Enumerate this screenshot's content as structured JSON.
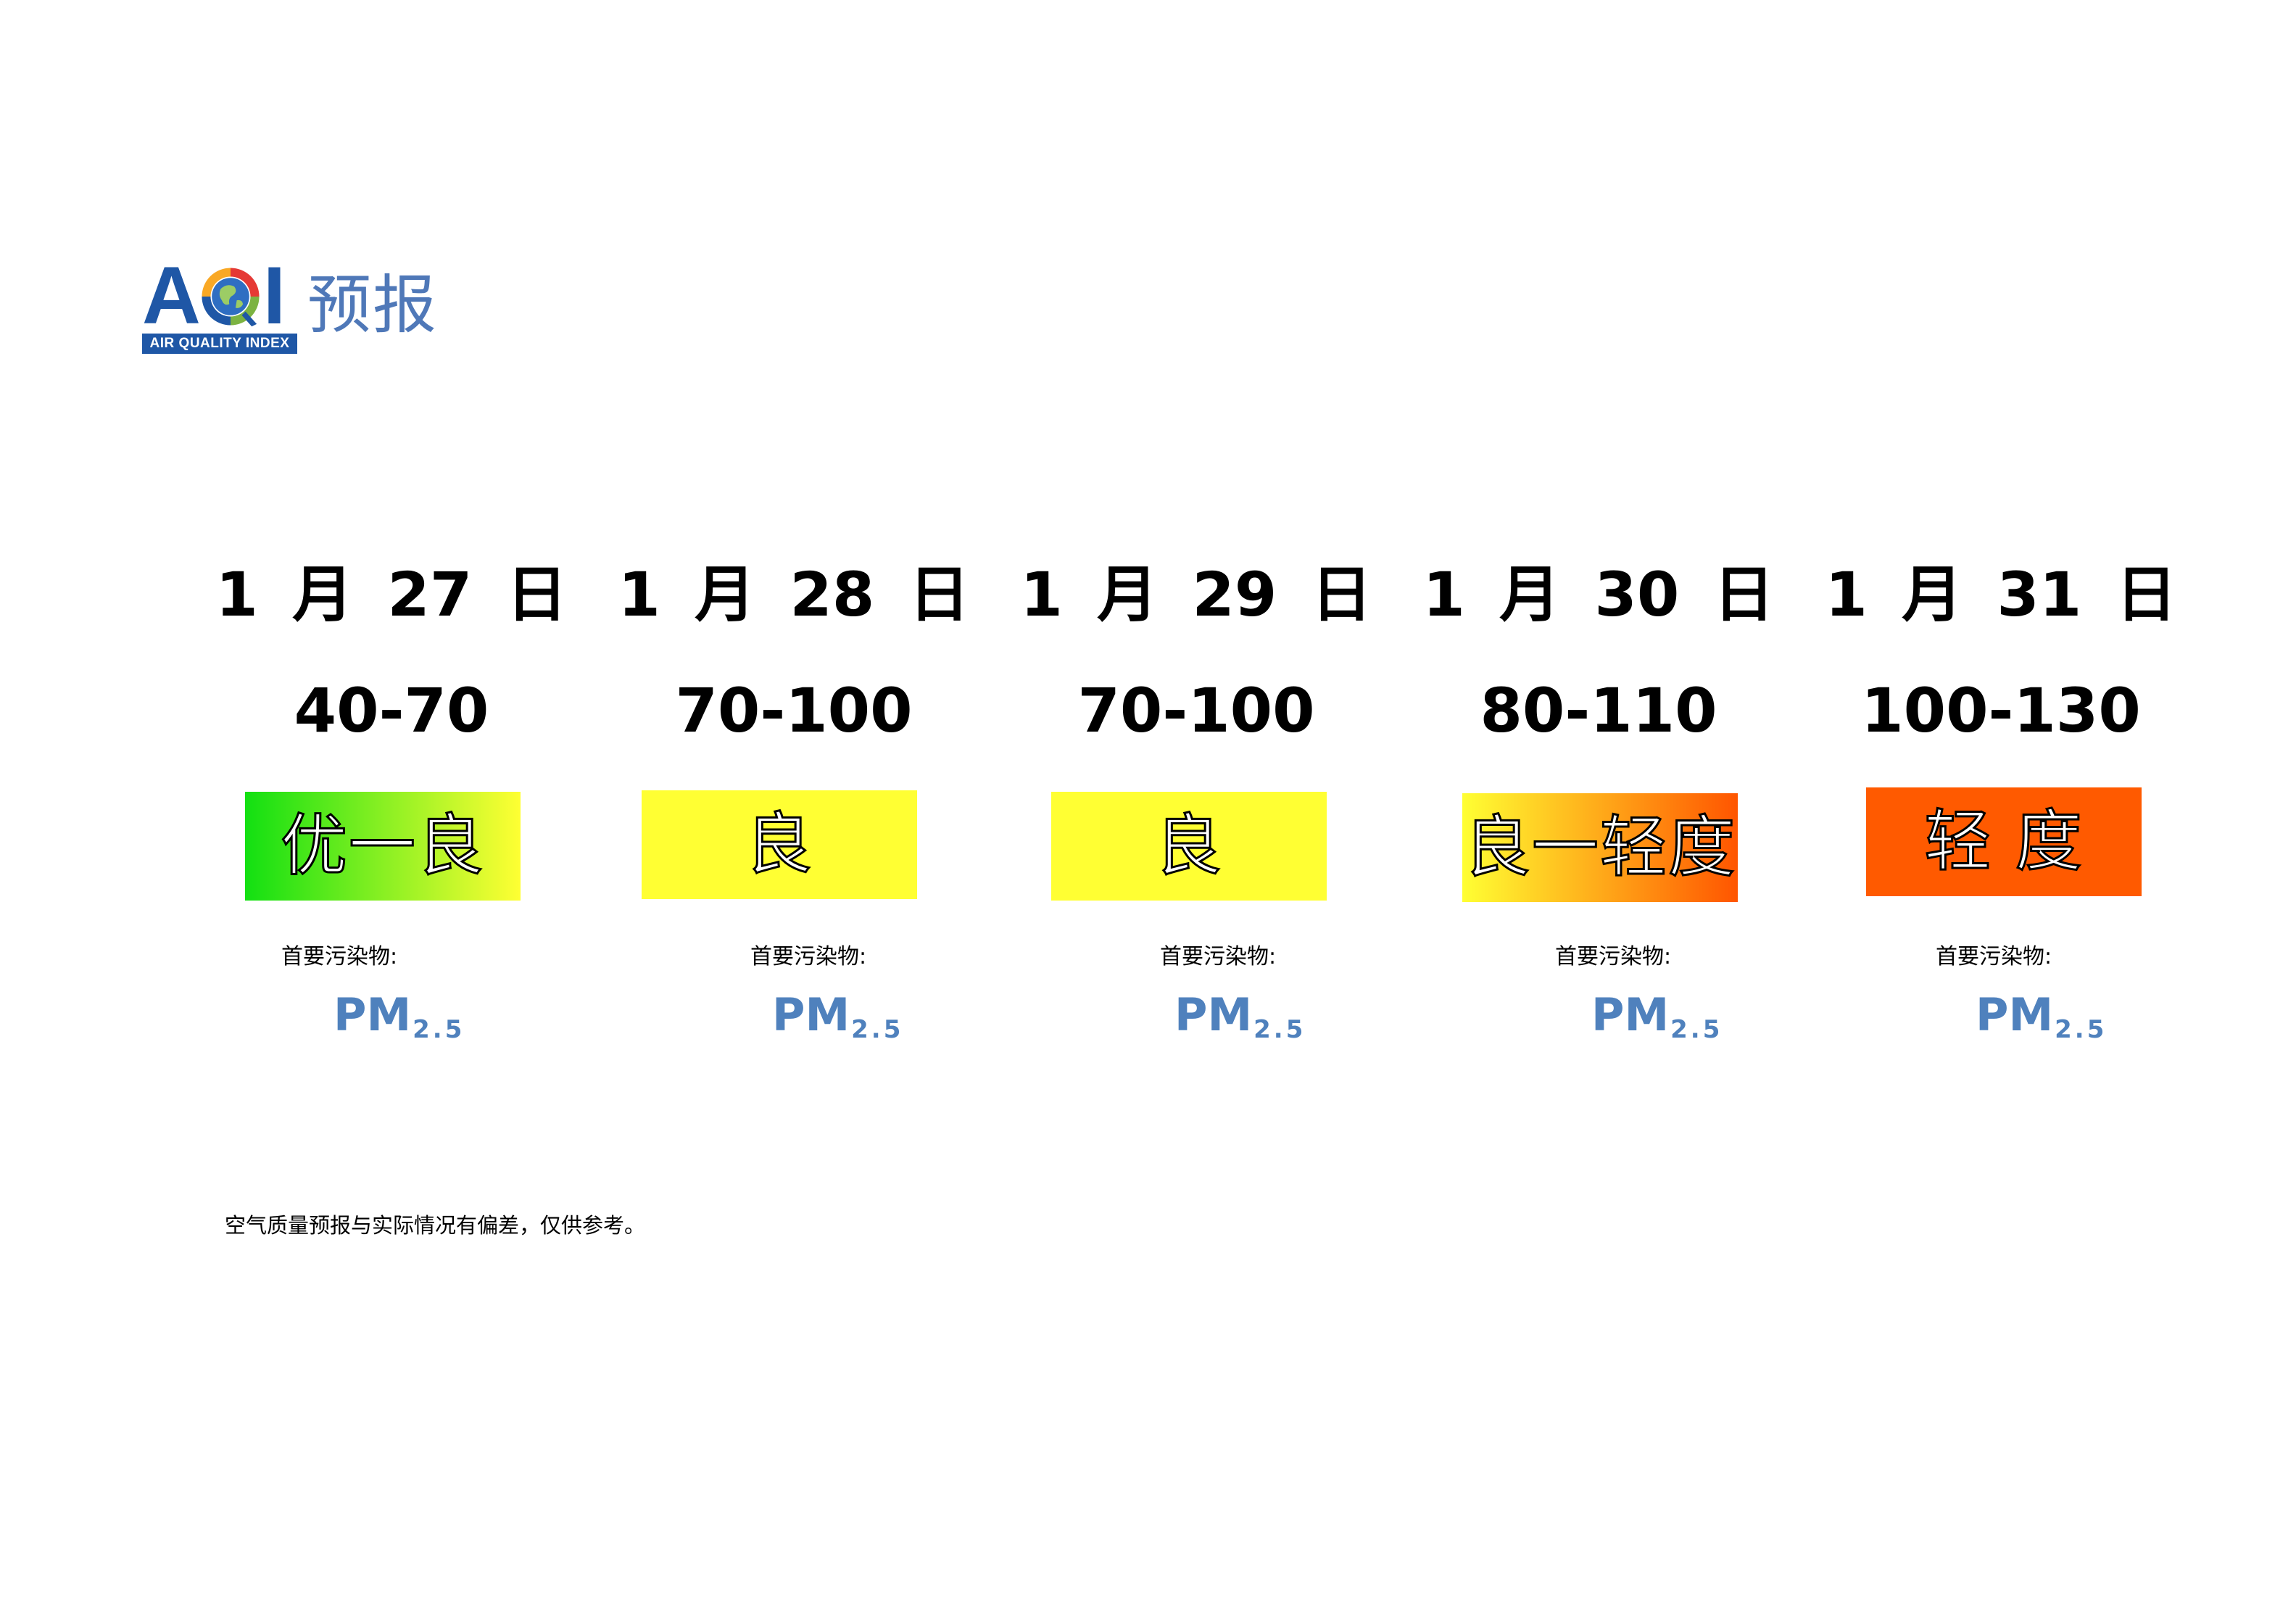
{
  "logo": {
    "letters": [
      "A",
      "Q",
      "I"
    ],
    "subtitle": "AIR QUALITY INDEX",
    "title": "预报"
  },
  "days": [
    {
      "date": "1 月 27 日",
      "range": "40-70",
      "level": "优一良",
      "pollutant_label": "首要污染物:",
      "pollutant": "PM",
      "pollutant_sub": "2.5",
      "colors": [
        "#12e012",
        "#ffff33"
      ]
    },
    {
      "date": "1 月 28 日",
      "range": "70-100",
      "level": "良",
      "pollutant_label": "首要污染物:",
      "pollutant": "PM",
      "pollutant_sub": "2.5",
      "colors": [
        "#ffff33",
        "#ffff33"
      ]
    },
    {
      "date": "1 月 29 日",
      "range": "70-100",
      "level": "良",
      "pollutant_label": "首要污染物:",
      "pollutant": "PM",
      "pollutant_sub": "2.5",
      "colors": [
        "#ffff33",
        "#ffff33"
      ]
    },
    {
      "date": "1 月 30 日",
      "range": "80-110",
      "level": "良一轻度",
      "pollutant_label": "首要污染物:",
      "pollutant": "PM",
      "pollutant_sub": "2.5",
      "colors": [
        "#ffff33",
        "#ff5500"
      ]
    },
    {
      "date": "1 月 31 日",
      "range": "100-130",
      "level": "轻 度",
      "pollutant_label": "首要污染物:",
      "pollutant": "PM",
      "pollutant_sub": "2.5",
      "colors": [
        "#ff5a00",
        "#ff5a00"
      ]
    }
  ],
  "note": "空气质量预报与实际情况有偏差，仅供参考。"
}
